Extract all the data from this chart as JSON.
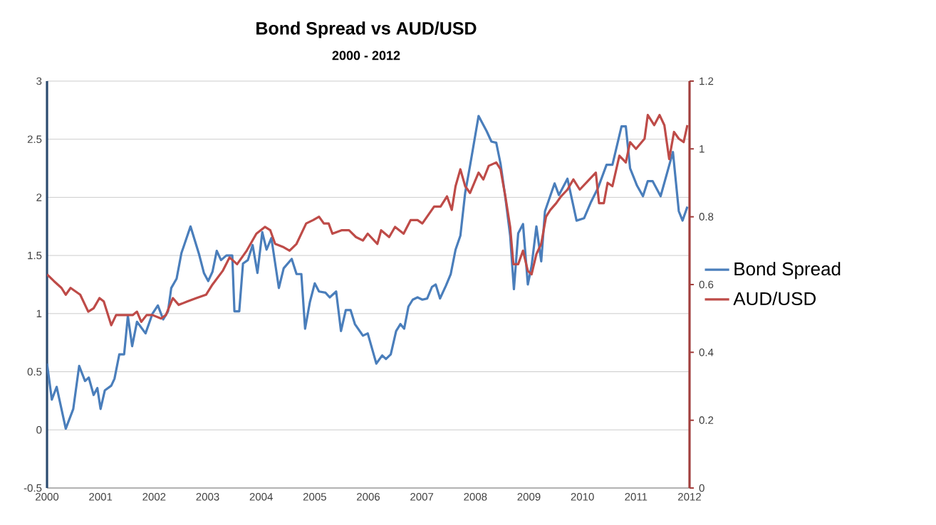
{
  "chart_data": {
    "type": "line",
    "title": "Bond Spread vs AUD/USD",
    "subtitle": "2000 - 2012",
    "xlim": [
      2000,
      2012
    ],
    "xticks": [
      2000,
      2001,
      2002,
      2003,
      2004,
      2005,
      2006,
      2007,
      2008,
      2009,
      2010,
      2011,
      2012
    ],
    "ylim": [
      -0.5,
      3
    ],
    "yticks": [
      -0.5,
      0,
      0.5,
      1,
      1.5,
      2,
      2.5,
      3
    ],
    "y2lim": [
      0,
      1.2
    ],
    "y2ticks": [
      0,
      0.2,
      0.4,
      0.6,
      0.8,
      1,
      1.2
    ],
    "grid": "y",
    "legend": "right",
    "marker": "none",
    "line_style": "solid",
    "series": [
      {
        "name": "Bond Spread",
        "color": "#4a7ebb",
        "x": [
          2000,
          2000.09,
          2000.18,
          2000.35,
          2000.49,
          2000.6,
          2000.71,
          2000.78,
          2000.87,
          2000.94,
          2001.0,
          2001.08,
          2001.2,
          2001.26,
          2001.35,
          2001.44,
          2001.51,
          2001.59,
          2001.68,
          2001.84,
          2001.97,
          2002.07,
          2002.17,
          2002.26,
          2002.32,
          2002.42,
          2002.51,
          2002.68,
          2002.84,
          2002.93,
          2003.01,
          2003.09,
          2003.17,
          2003.25,
          2003.35,
          2003.46,
          2003.5,
          2003.59,
          2003.66,
          2003.75,
          2003.84,
          2003.93,
          2004.02,
          2004.1,
          2004.19,
          2004.33,
          2004.42,
          2004.57,
          2004.66,
          2004.75,
          2004.82,
          2004.91,
          2005.0,
          2005.08,
          2005.2,
          2005.28,
          2005.4,
          2005.49,
          2005.58,
          2005.67,
          2005.75,
          2005.9,
          2005.99,
          2006.15,
          2006.26,
          2006.33,
          2006.42,
          2006.52,
          2006.6,
          2006.67,
          2006.75,
          2006.83,
          2006.92,
          2007.01,
          2007.1,
          2007.19,
          2007.26,
          2007.34,
          2007.45,
          2007.54,
          2007.63,
          2007.72,
          2007.81,
          2007.9,
          2008.06,
          2008.21,
          2008.3,
          2008.39,
          2008.47,
          2008.56,
          2008.65,
          2008.72,
          2008.8,
          2008.89,
          2008.98,
          2009.05,
          2009.14,
          2009.23,
          2009.3,
          2009.48,
          2009.56,
          2009.72,
          2009.89,
          2010.03,
          2010.16,
          2010.29,
          2010.45,
          2010.56,
          2010.73,
          2010.81,
          2010.89,
          2011.02,
          2011.13,
          2011.22,
          2011.31,
          2011.46,
          2011.69,
          2011.8,
          2011.87,
          2011.96
        ],
        "values": [
          0.57,
          0.26,
          0.37,
          0.01,
          0.18,
          0.55,
          0.42,
          0.45,
          0.3,
          0.36,
          0.18,
          0.34,
          0.38,
          0.44,
          0.65,
          0.65,
          0.98,
          0.72,
          0.93,
          0.83,
          1.0,
          1.07,
          0.95,
          1.02,
          1.22,
          1.3,
          1.52,
          1.75,
          1.51,
          1.35,
          1.28,
          1.36,
          1.54,
          1.46,
          1.5,
          1.5,
          1.02,
          1.02,
          1.43,
          1.46,
          1.59,
          1.35,
          1.7,
          1.55,
          1.65,
          1.22,
          1.39,
          1.47,
          1.34,
          1.34,
          0.87,
          1.1,
          1.26,
          1.19,
          1.18,
          1.14,
          1.19,
          0.85,
          1.03,
          1.03,
          0.91,
          0.81,
          0.83,
          0.57,
          0.64,
          0.61,
          0.65,
          0.85,
          0.91,
          0.87,
          1.06,
          1.12,
          1.14,
          1.12,
          1.13,
          1.23,
          1.25,
          1.13,
          1.24,
          1.34,
          1.55,
          1.67,
          2.04,
          2.27,
          2.7,
          2.57,
          2.48,
          2.47,
          2.29,
          2.0,
          1.67,
          1.21,
          1.69,
          1.77,
          1.25,
          1.41,
          1.75,
          1.45,
          1.88,
          2.12,
          2.02,
          2.16,
          1.8,
          1.82,
          1.96,
          2.08,
          2.28,
          2.28,
          2.61,
          2.61,
          2.25,
          2.1,
          2.01,
          2.14,
          2.14,
          2.01,
          2.39,
          1.88,
          1.8,
          1.92
        ]
      },
      {
        "name": "AUD/USD",
        "color": "#be4b48",
        "axis": "y2",
        "x": [
          2000,
          2000.13,
          2000.27,
          2000.35,
          2000.44,
          2000.53,
          2000.62,
          2000.77,
          2000.87,
          2000.98,
          2001.06,
          2001.2,
          2001.29,
          2001.42,
          2001.6,
          2001.68,
          2001.76,
          2001.86,
          2001.97,
          2002.13,
          2002.22,
          2002.35,
          2002.46,
          2002.62,
          2002.79,
          2002.97,
          2003.09,
          2003.28,
          2003.41,
          2003.55,
          2003.73,
          2003.91,
          2004.07,
          2004.17,
          2004.26,
          2004.42,
          2004.53,
          2004.66,
          2004.84,
          2004.97,
          2005.08,
          2005.17,
          2005.26,
          2005.33,
          2005.5,
          2005.64,
          2005.77,
          2005.9,
          2005.99,
          2006.17,
          2006.24,
          2006.39,
          2006.5,
          2006.66,
          2006.79,
          2006.92,
          2007.01,
          2007.23,
          2007.35,
          2007.47,
          2007.56,
          2007.63,
          2007.72,
          2007.81,
          2007.9,
          2008.06,
          2008.15,
          2008.25,
          2008.39,
          2008.47,
          2008.56,
          2008.65,
          2008.71,
          2008.8,
          2008.89,
          2008.98,
          2009.05,
          2009.14,
          2009.23,
          2009.32,
          2009.4,
          2009.51,
          2009.6,
          2009.72,
          2009.83,
          2009.95,
          2010.13,
          2010.25,
          2010.31,
          2010.4,
          2010.47,
          2010.56,
          2010.69,
          2010.81,
          2010.89,
          2011.0,
          2011.16,
          2011.22,
          2011.34,
          2011.44,
          2011.53,
          2011.62,
          2011.71,
          2011.8,
          2011.89,
          2011.96
        ],
        "values": [
          0.63,
          0.61,
          0.59,
          0.57,
          0.59,
          0.58,
          0.57,
          0.52,
          0.53,
          0.56,
          0.55,
          0.48,
          0.51,
          0.51,
          0.51,
          0.52,
          0.49,
          0.51,
          0.51,
          0.5,
          0.51,
          0.56,
          0.54,
          0.55,
          0.56,
          0.57,
          0.6,
          0.64,
          0.68,
          0.66,
          0.7,
          0.75,
          0.77,
          0.76,
          0.72,
          0.71,
          0.7,
          0.72,
          0.78,
          0.79,
          0.8,
          0.78,
          0.78,
          0.75,
          0.76,
          0.76,
          0.74,
          0.73,
          0.75,
          0.72,
          0.76,
          0.74,
          0.77,
          0.75,
          0.79,
          0.79,
          0.78,
          0.83,
          0.83,
          0.86,
          0.82,
          0.89,
          0.94,
          0.89,
          0.87,
          0.93,
          0.91,
          0.95,
          0.96,
          0.94,
          0.86,
          0.77,
          0.66,
          0.66,
          0.7,
          0.64,
          0.63,
          0.69,
          0.72,
          0.8,
          0.82,
          0.84,
          0.86,
          0.88,
          0.91,
          0.88,
          0.91,
          0.93,
          0.84,
          0.84,
          0.9,
          0.89,
          0.98,
          0.96,
          1.02,
          1.0,
          1.03,
          1.1,
          1.07,
          1.1,
          1.07,
          0.97,
          1.05,
          1.03,
          1.02,
          1.07
        ]
      }
    ]
  }
}
